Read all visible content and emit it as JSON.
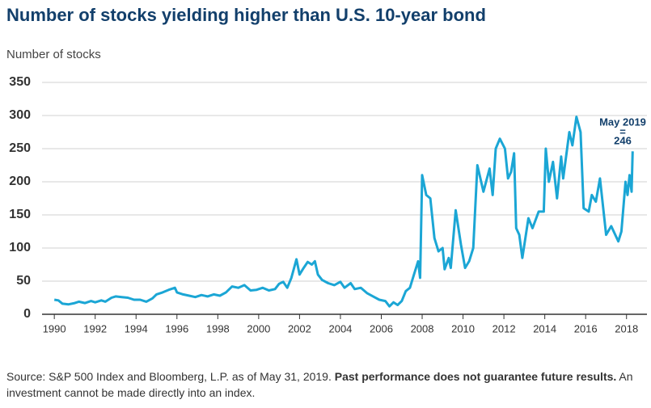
{
  "chart_data": {
    "type": "line",
    "title": "Number of stocks yielding higher than U.S. 10-year bond",
    "y_label": "Number of stocks",
    "annotations": [
      "May 2019",
      "="
    ],
    "source": {
      "text": "Source: S&P 500 Index and Bloomberg, L.P. as of May 31, 2019.",
      "bold": "Past performance does not guarantee future results.",
      "rest": "An investment cannot be made directly into an index."
    },
    "color": "#1ba6d5",
    "grid": true,
    "xlim": [
      1989.4,
      2019.0
    ],
    "ylim": [
      0,
      350
    ],
    "xticks": [
      1990,
      1992,
      1994,
      1996,
      1998,
      2000,
      2002,
      2004,
      2006,
      2008,
      2010,
      2012,
      2014,
      2016,
      2018
    ],
    "yticks": [
      0,
      50,
      100,
      150,
      200,
      250,
      300,
      350
    ],
    "x": [
      1990.0,
      1990.2,
      1990.4,
      1990.7,
      1991.0,
      1991.2,
      1991.5,
      1991.8,
      1992.0,
      1992.3,
      1992.5,
      1992.8,
      1993.0,
      1993.3,
      1993.6,
      1993.9,
      1994.2,
      1994.5,
      1994.8,
      1995.0,
      1995.3,
      1995.6,
      1995.9,
      1996.0,
      1996.3,
      1996.6,
      1996.9,
      1997.2,
      1997.5,
      1997.8,
      1998.1,
      1998.4,
      1998.7,
      1999.0,
      1999.3,
      1999.6,
      1999.9,
      2000.2,
      2000.5,
      2000.8,
      2001.0,
      2001.2,
      2001.4,
      2001.6,
      2001.85,
      2002.0,
      2002.2,
      2002.4,
      2002.6,
      2002.75,
      2002.9,
      2003.1,
      2003.4,
      2003.7,
      2004.0,
      2004.2,
      2004.5,
      2004.7,
      2005.0,
      2005.3,
      2005.6,
      2005.9,
      2006.2,
      2006.4,
      2006.6,
      2006.8,
      2007.0,
      2007.2,
      2007.4,
      2007.6,
      2007.8,
      2007.9,
      2008.0,
      2008.2,
      2008.4,
      2008.6,
      2008.8,
      2009.0,
      2009.1,
      2009.3,
      2009.4,
      2009.64,
      2009.8,
      2009.9,
      2010.1,
      2010.3,
      2010.5,
      2010.7,
      2011.0,
      2011.3,
      2011.45,
      2011.6,
      2011.8,
      2012.05,
      2012.2,
      2012.35,
      2012.5,
      2012.6,
      2012.75,
      2012.9,
      2013.2,
      2013.4,
      2013.7,
      2013.95,
      2014.05,
      2014.2,
      2014.4,
      2014.6,
      2014.8,
      2014.9,
      2015.2,
      2015.35,
      2015.55,
      2015.75,
      2015.9,
      2016.15,
      2016.3,
      2016.5,
      2016.7,
      2017.0,
      2017.25,
      2017.45,
      2017.6,
      2017.75,
      2017.95,
      2018.05,
      2018.15,
      2018.25,
      2018.3
    ],
    "values": [
      22,
      21,
      16,
      15,
      17,
      19,
      17,
      20,
      18,
      21,
      19,
      25,
      27,
      26,
      25,
      22,
      22,
      19,
      24,
      30,
      33,
      37,
      40,
      33,
      30,
      28,
      26,
      29,
      27,
      30,
      28,
      33,
      42,
      40,
      44,
      36,
      37,
      40,
      36,
      38,
      46,
      49,
      40,
      55,
      83,
      60,
      70,
      79,
      75,
      80,
      60,
      52,
      47,
      44,
      49,
      40,
      47,
      38,
      40,
      32,
      27,
      22,
      20,
      12,
      18,
      14,
      20,
      35,
      40,
      60,
      80,
      55,
      210,
      180,
      175,
      115,
      95,
      100,
      68,
      85,
      70,
      157,
      125,
      105,
      70,
      80,
      100,
      225,
      185,
      220,
      180,
      250,
      265,
      250,
      205,
      215,
      243,
      130,
      120,
      85,
      145,
      130,
      155,
      155,
      250,
      200,
      230,
      175,
      238,
      205,
      275,
      255,
      298,
      275,
      160,
      155,
      180,
      170,
      205,
      120,
      133,
      120,
      110,
      125,
      200,
      180,
      210,
      185,
      246
    ]
  }
}
